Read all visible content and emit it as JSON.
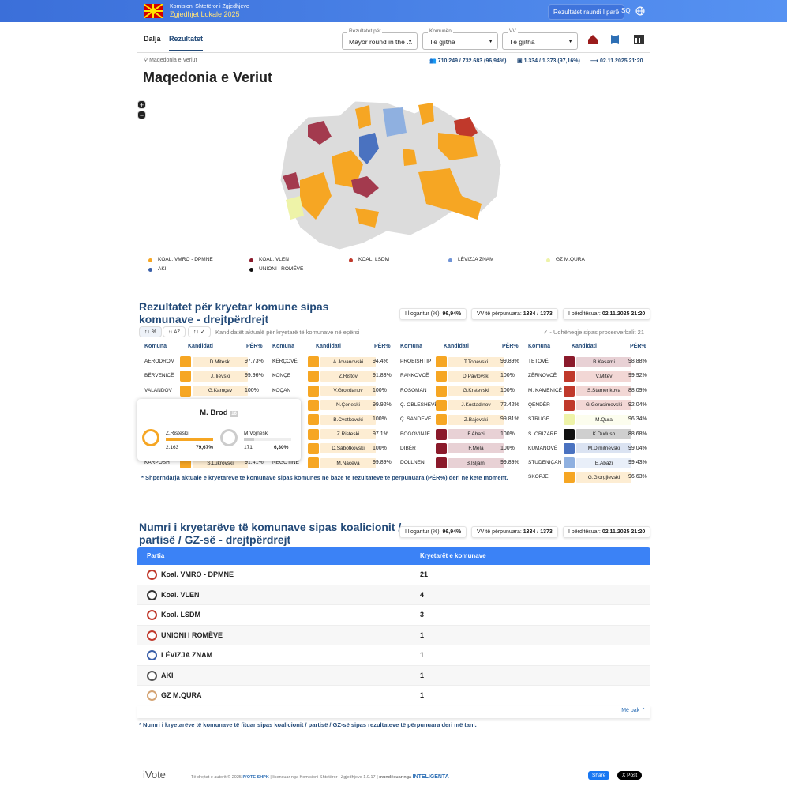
{
  "header": {
    "org": "Komisioni Shtetëror i Zgjedhjeve",
    "election": "Zgjedhjet Lokale 2025",
    "round_button": "Rezultatet raundi I parë",
    "language": "SQ"
  },
  "tabs": [
    "Dalja",
    "Rezultatet"
  ],
  "filters": [
    {
      "label": "Rezultatet për",
      "value": "Mayor round in the ..."
    },
    {
      "label": "Komunën",
      "value": "Të gjitha"
    },
    {
      "label": "VV",
      "value": "Të gjitha"
    }
  ],
  "breadcrumb": "Maqedonia e Veriut",
  "stats": {
    "voters": "710.249 / 732.683 (96,94%)",
    "polling_stations": "1.334 / 1.373 (97,16%)",
    "updated": "02.11.2025 21:20"
  },
  "title": "Maqedonia e Veriut",
  "map": {
    "zoom_in": "+",
    "zoom_out": "−",
    "legend": [
      {
        "name": "KOAL. VMRO - DPMNE",
        "color": "#f6a623"
      },
      {
        "name": "KOAL. VLEN",
        "color": "#8b1a2b"
      },
      {
        "name": "KOAL. LSDM",
        "color": "#c0392b"
      },
      {
        "name": "LËVIZJA ZNAM",
        "color": "#6f93d6"
      },
      {
        "name": "GZ M.QURA",
        "color": "#eef3a8"
      },
      {
        "name": "AKI",
        "color": "#3a5fa8"
      },
      {
        "name": "UNIONI I ROMËVE",
        "color": "#111111"
      }
    ]
  },
  "mayors_section": {
    "title": "Rezultatet për kryetar komune sipas komunave - drejtpërdrejt",
    "badges": [
      {
        "label": "I llogaritur (%):",
        "value": "96,94%"
      },
      {
        "label": "VV të përpunuara:",
        "value": "1334 / 1373"
      },
      {
        "label": "I përditësuar:",
        "value": "02.11.2025 21:20"
      }
    ],
    "sort": [
      "%",
      "AZ"
    ],
    "note": "Kandidatët aktualë për kryetarë të komunave në epërsi",
    "protocol_note": "- Udhëheqje sipas procesverbalit 21",
    "headers": [
      "Komuna",
      "Kandidati",
      "PËR%"
    ],
    "columns": [
      [
        {
          "municipality": "AERODROM",
          "candidate": "D.Miteski",
          "percent": "97.73%",
          "color": "#f6a623"
        },
        {
          "municipality": "BËRVENICË",
          "candidate": "J.Ilievski",
          "percent": "99.96%",
          "color": "#f6a623"
        },
        {
          "municipality": "VALANDOV",
          "candidate": "G.Kamçev",
          "percent": "100%",
          "color": "#f6a623"
        },
        {
          "municipality": "KARPOSH",
          "candidate": "S.Lukrovski",
          "percent": "91.41%",
          "color": "#f6a623"
        }
      ],
      [
        {
          "municipality": "KËRÇOVË",
          "candidate": "A.Jovanovski",
          "percent": "94.4%",
          "color": "#f6a623"
        },
        {
          "municipality": "KONÇE",
          "candidate": "Z.Ristov",
          "percent": "91.83%",
          "color": "#f6a623"
        },
        {
          "municipality": "KOÇAN",
          "candidate": "V.Grozdanov",
          "percent": "100%",
          "color": "#f6a623"
        },
        {
          "municipality": null,
          "candidate": "N.Çoneski",
          "percent": "99.92%",
          "color": "#f6a623"
        },
        {
          "municipality": null,
          "candidate": "B.Cvetkovski",
          "percent": "100%",
          "color": "#f6a623"
        },
        {
          "municipality": null,
          "candidate": "Z.Risteski",
          "percent": "97.1%",
          "color": "#f6a623"
        },
        {
          "municipality": null,
          "candidate": "D.Sabotkovski",
          "percent": "100%",
          "color": "#f6a623"
        },
        {
          "municipality": "NEGOTINE",
          "candidate": "M.Naceva",
          "percent": "99.89%",
          "color": "#f6a623"
        }
      ],
      [
        {
          "municipality": "PROBISHTIP",
          "candidate": "T.Tonevski",
          "percent": "99.89%",
          "color": "#f6a623"
        },
        {
          "municipality": "RANKOVCË",
          "candidate": "D.Pavlovski",
          "percent": "100%",
          "color": "#f6a623"
        },
        {
          "municipality": "ROSOMAN",
          "candidate": "G.Krstevski",
          "percent": "100%",
          "color": "#f6a623"
        },
        {
          "municipality": "Ç. OBLESHEVË",
          "candidate": "J.Kostadinov",
          "percent": "72.42%",
          "color": "#f6a623"
        },
        {
          "municipality": "Ç. SANDEVË",
          "candidate": "Z.Bajovski",
          "percent": "99.81%",
          "color": "#f6a623"
        },
        {
          "municipality": "BOGOVINJE",
          "candidate": "F.Abazi",
          "percent": "100%",
          "color": "#8b1a2b"
        },
        {
          "municipality": "DIBËR",
          "candidate": "F.Mela",
          "percent": "100%",
          "color": "#8b1a2b"
        },
        {
          "municipality": "DOLLNENI",
          "candidate": "B.Isljami",
          "percent": "99.89%",
          "color": "#8b1a2b"
        }
      ],
      [
        {
          "municipality": "TETOVË",
          "candidate": "B.Kasami",
          "percent": "98.88%",
          "color": "#8b1a2b"
        },
        {
          "municipality": "ZËRNOVCË",
          "candidate": "V.Mitev",
          "percent": "99.92%",
          "color": "#c0392b"
        },
        {
          "municipality": "M. KAMENICË",
          "candidate": "S.Stamenkova",
          "percent": "88.09%",
          "color": "#c0392b"
        },
        {
          "municipality": "QENDËR",
          "candidate": "G.Gerasimovski",
          "percent": "92.04%",
          "color": "#c0392b"
        },
        {
          "municipality": "STRUGË",
          "candidate": "M.Qura",
          "percent": "96.34%",
          "color": "#eef3a8"
        },
        {
          "municipality": "S. ORIZARE",
          "candidate": "K.Dudush",
          "percent": "88.68%",
          "color": "#111111"
        },
        {
          "municipality": "KUMANOVË",
          "candidate": "M.Dimitrievski",
          "percent": "99.04%",
          "color": "#4a72c0"
        },
        {
          "municipality": "STUDENIÇAN",
          "candidate": "E.Abazi",
          "percent": "99.43%",
          "color": "#8fb0e0"
        },
        {
          "municipality": "SKOPJE",
          "candidate": "G.Gjorgjievski",
          "percent": "96.63%",
          "color": "#f6a623"
        }
      ]
    ],
    "popup": {
      "municipality": "M. Brod",
      "badge": "16",
      "candidates": [
        {
          "name": "Z.Risteski",
          "votes": "2.163",
          "percent": "79,67%",
          "color": "#f6a623"
        },
        {
          "name": "M.Vojneski",
          "votes": "171",
          "percent": "6,30%",
          "color": "#cccccc"
        }
      ]
    },
    "footnote": "* Shpërndarja aktuale e kryetarëve të komunave sipas komunës në bazë të rezultateve të përpunuara (PËR%) deri në këtë moment."
  },
  "parties_section": {
    "title": "Numri i kryetarëve të komunave sipas koalicionit / partisë / GZ-së - drejtpërdrejt",
    "badges": [
      {
        "label": "I llogaritur (%):",
        "value": "96,94%"
      },
      {
        "label": "VV të përpunuara:",
        "value": "1334 / 1373"
      },
      {
        "label": "I përditësuar:",
        "value": "02.11.2025 21:20"
      }
    ],
    "headers": [
      "Partia",
      "Kryetarët e komunave"
    ],
    "rows": [
      {
        "name": "Koal. VMRO - DPMNE",
        "count": "21",
        "color": "#c0392b"
      },
      {
        "name": "Koal. VLEN",
        "count": "4",
        "color": "#333333"
      },
      {
        "name": "Koal. LSDM",
        "count": "3",
        "color": "#c0392b"
      },
      {
        "name": "UNIONI I ROMËVE",
        "count": "1",
        "color": "#c0392b"
      },
      {
        "name": "LËVIZJA ZNAM",
        "count": "1",
        "color": "#3a5fa8"
      },
      {
        "name": "AKI",
        "count": "1",
        "color": "#555555"
      },
      {
        "name": "GZ M.QURA",
        "count": "1",
        "color": "#d4a373"
      }
    ],
    "less": "Më pak",
    "footnote": "* Numri i kryetarëve të komunave të fituar sipas koalicionit / partisë / GZ-së sipas rezultateve të përpunuara deri më tani."
  },
  "footer": {
    "brand": "iVote",
    "copyright": "Të drejtat e autorit © 2025",
    "company": "IVOTE SHPK",
    "license": "| licencuar nga Komisioni Shtetëror i Zgjedhjeve 1.0.17",
    "powered": "| mundësuar nga",
    "partner": "INTELIGENTA",
    "share": "Share",
    "post": "X Post"
  }
}
